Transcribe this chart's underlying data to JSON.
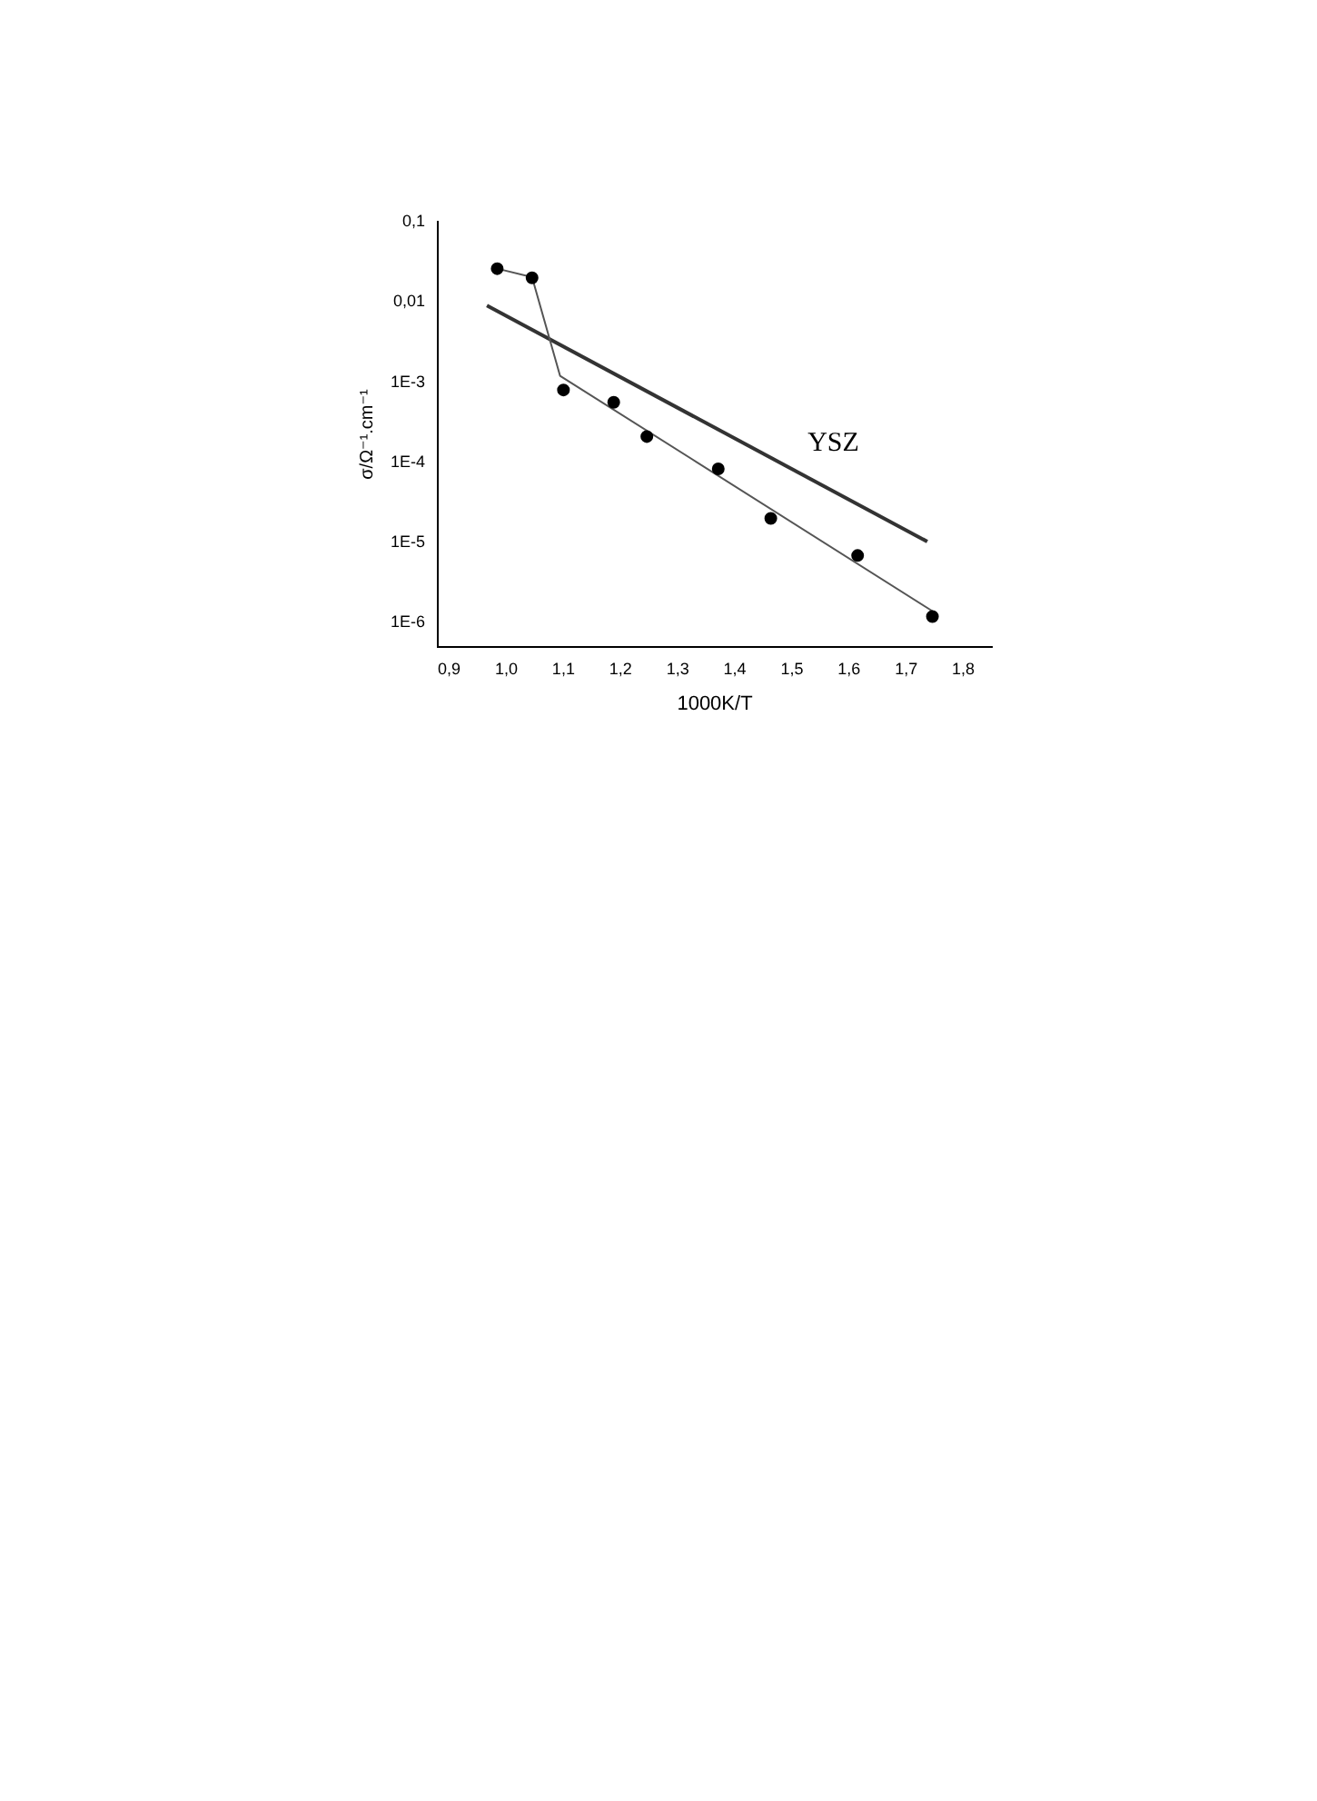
{
  "chart_data": {
    "type": "scatter",
    "xlabel": "1000K/T",
    "ylabel": "σ/Ω⁻¹.cm⁻¹",
    "log": "y",
    "grid": false,
    "legend": false,
    "xlim": [
      0.88,
      1.85
    ],
    "ylim": [
      5e-07,
      0.1
    ],
    "xticks": [
      {
        "value": 0.9,
        "label": "0,9"
      },
      {
        "value": 1.0,
        "label": "1,0"
      },
      {
        "value": 1.1,
        "label": "1,1"
      },
      {
        "value": 1.2,
        "label": "1,2"
      },
      {
        "value": 1.3,
        "label": "1,3"
      },
      {
        "value": 1.4,
        "label": "1,4"
      },
      {
        "value": 1.5,
        "label": "1,5"
      },
      {
        "value": 1.6,
        "label": "1,6"
      },
      {
        "value": 1.7,
        "label": "1,7"
      },
      {
        "value": 1.8,
        "label": "1,8"
      }
    ],
    "yticks": [
      {
        "value": 1e-06,
        "label": "1E-6"
      },
      {
        "value": 1e-05,
        "label": "1E-5"
      },
      {
        "value": 0.0001,
        "label": "1E-4"
      },
      {
        "value": 0.001,
        "label": "1E-3"
      },
      {
        "value": 0.01,
        "label": "0,01"
      },
      {
        "value": 0.1,
        "label": "0,1"
      }
    ],
    "series": [
      {
        "type": "scatter",
        "marker": "circle",
        "color": "#000000",
        "x": [
          0.984,
          1.045,
          1.1,
          1.188,
          1.246,
          1.371,
          1.463,
          1.615,
          1.746
        ],
        "values": [
          0.026,
          0.02,
          0.0008,
          0.00056,
          0.00021,
          8.3e-05,
          2e-05,
          6.9e-06,
          1.2e-06
        ]
      },
      {
        "type": "line",
        "marker": "none",
        "color": "#555555",
        "x": [
          0.984,
          1.045,
          1.094,
          1.746
        ],
        "values": [
          0.026,
          0.0204,
          0.0012,
          1.4e-06
        ]
      },
      {
        "type": "line",
        "name": "YSZ",
        "marker": "none",
        "color": "#333333",
        "x": [
          0.966,
          1.737
        ],
        "values": [
          0.009,
          1.03e-05
        ]
      }
    ]
  }
}
